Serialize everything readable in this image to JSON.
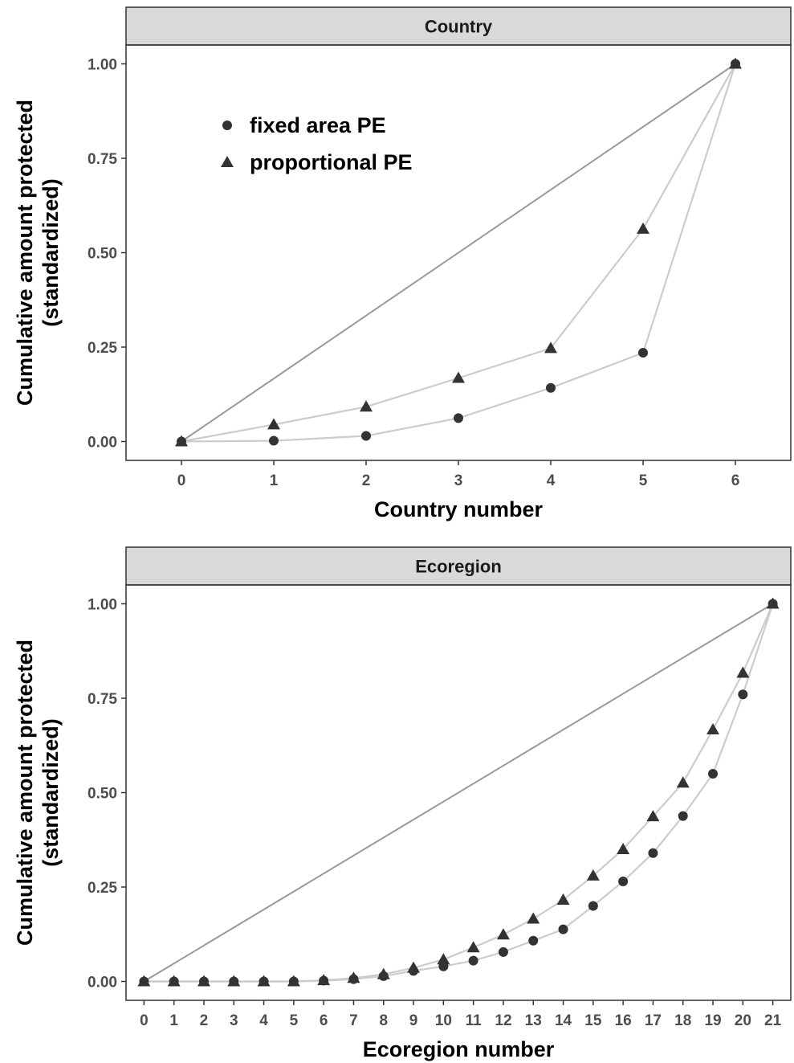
{
  "chart_data": [
    {
      "type": "line",
      "panel": "Country",
      "xlabel": "Country number",
      "ylabel": [
        "Cumulative amount protected",
        "(standardized)"
      ],
      "xlim": [
        -0.6,
        6.6
      ],
      "ylim": [
        -0.05,
        1.05
      ],
      "x_ticks": [
        "0",
        "1",
        "2",
        "3",
        "4",
        "5",
        "6"
      ],
      "y_ticks": [
        "0.00",
        "0.25",
        "0.50",
        "0.75",
        "1.00"
      ],
      "grid": false,
      "legend": {
        "position": "top-left",
        "entries": [
          {
            "label": "fixed area PE",
            "shape": "circle"
          },
          {
            "label": "proportional PE",
            "shape": "triangle"
          }
        ]
      },
      "equality_line": {
        "x": [
          0,
          6
        ],
        "y": [
          0,
          1
        ]
      },
      "series": [
        {
          "name": "fixed area PE",
          "shape": "circle",
          "x": [
            0,
            1,
            2,
            3,
            4,
            5,
            6
          ],
          "y": [
            0.0,
            0.002,
            0.015,
            0.062,
            0.142,
            0.235,
            1.0
          ]
        },
        {
          "name": "proportional PE",
          "shape": "triangle",
          "x": [
            0,
            1,
            2,
            3,
            4,
            5,
            6
          ],
          "y": [
            0.0,
            0.045,
            0.092,
            0.168,
            0.247,
            0.563,
            1.0
          ]
        }
      ]
    },
    {
      "type": "line",
      "panel": "Ecoregion",
      "xlabel": "Ecoregion number",
      "ylabel": [
        "Cumulative amount protected",
        "(standardized)"
      ],
      "xlim": [
        -0.6,
        21.6
      ],
      "ylim": [
        -0.05,
        1.05
      ],
      "x_ticks": [
        "0",
        "1",
        "2",
        "3",
        "4",
        "5",
        "6",
        "7",
        "8",
        "9",
        "10",
        "11",
        "12",
        "13",
        "14",
        "15",
        "16",
        "17",
        "18",
        "19",
        "20",
        "21"
      ],
      "y_ticks": [
        "0.00",
        "0.25",
        "0.50",
        "0.75",
        "1.00"
      ],
      "grid": false,
      "equality_line": {
        "x": [
          0,
          21
        ],
        "y": [
          0,
          1
        ]
      },
      "series": [
        {
          "name": "fixed area PE",
          "shape": "circle",
          "x": [
            0,
            1,
            2,
            3,
            4,
            5,
            6,
            7,
            8,
            9,
            10,
            11,
            12,
            13,
            14,
            15,
            16,
            17,
            18,
            19,
            20,
            21
          ],
          "y": [
            0.0,
            0.0,
            0.0,
            0.0,
            0.0,
            0.0,
            0.002,
            0.006,
            0.014,
            0.028,
            0.04,
            0.055,
            0.078,
            0.108,
            0.138,
            0.2,
            0.265,
            0.34,
            0.438,
            0.55,
            0.76,
            1.0
          ]
        },
        {
          "name": "proportional PE",
          "shape": "triangle",
          "x": [
            0,
            1,
            2,
            3,
            4,
            5,
            6,
            7,
            8,
            9,
            10,
            11,
            12,
            13,
            14,
            15,
            16,
            17,
            18,
            19,
            20,
            21
          ],
          "y": [
            0.0,
            0.0,
            0.0,
            0.0,
            0.0,
            0.0,
            0.003,
            0.009,
            0.019,
            0.036,
            0.058,
            0.09,
            0.124,
            0.166,
            0.216,
            0.28,
            0.35,
            0.437,
            0.526,
            0.667,
            0.817,
            1.0
          ]
        }
      ]
    }
  ]
}
